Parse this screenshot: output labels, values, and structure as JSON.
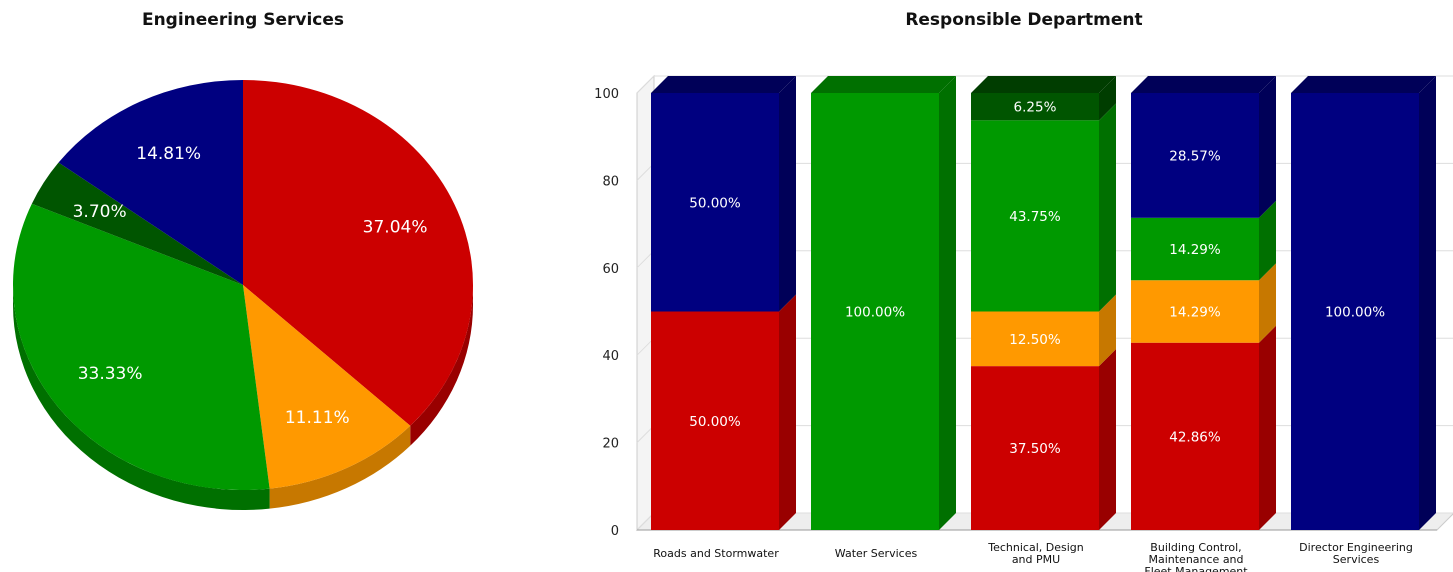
{
  "chart_data": [
    {
      "type": "pie",
      "title": "Engineering Services",
      "slices": [
        {
          "label": "37.04%",
          "value": 37.04,
          "color": "#cc0000",
          "side": "#990000"
        },
        {
          "label": "11.11%",
          "value": 11.11,
          "color": "#ff9900",
          "side": "#c77800"
        },
        {
          "label": "33.33%",
          "value": 33.33,
          "color": "#009900",
          "side": "#007000"
        },
        {
          "label": "3.70%",
          "value": 3.7,
          "color": "#005500",
          "side": "#003d00"
        },
        {
          "label": "14.81%",
          "value": 14.81,
          "color": "#000080",
          "side": "#000058"
        }
      ]
    },
    {
      "type": "bar",
      "stacked": true,
      "title": "Responsible Department",
      "ylim": [
        0,
        100
      ],
      "yticks": [
        "0",
        "20",
        "40",
        "60",
        "80",
        "100"
      ],
      "grid": true,
      "categories": [
        [
          "Roads and Stormwater"
        ],
        [
          "Water Services"
        ],
        [
          "Technical, Design",
          "and PMU"
        ],
        [
          "Building Control,",
          "Maintenance and",
          "Fleet Management"
        ],
        [
          "Director Engineering",
          "Services"
        ]
      ],
      "series": [
        {
          "color": "#cc0000",
          "side": "#990000",
          "values": [
            50.0,
            0,
            37.5,
            42.86,
            0
          ],
          "labels": [
            "50.00%",
            "",
            "37.50%",
            "42.86%",
            ""
          ]
        },
        {
          "color": "#ff9900",
          "side": "#c77800",
          "values": [
            0,
            0,
            12.5,
            14.29,
            0
          ],
          "labels": [
            "",
            "",
            "12.50%",
            "14.29%",
            ""
          ]
        },
        {
          "color": "#009900",
          "side": "#007000",
          "values": [
            0,
            100.0,
            43.75,
            14.29,
            0
          ],
          "labels": [
            "",
            "100.00%",
            "43.75%",
            "14.29%",
            ""
          ]
        },
        {
          "color": "#005500",
          "side": "#003d00",
          "values": [
            0,
            0,
            6.25,
            0,
            0
          ],
          "labels": [
            "",
            "",
            "6.25%",
            "",
            ""
          ]
        },
        {
          "color": "#000080",
          "side": "#000058",
          "values": [
            50.0,
            0,
            0,
            28.57,
            100.0
          ],
          "labels": [
            "50.00%",
            "",
            "",
            "28.57%",
            "100.00%"
          ]
        }
      ]
    }
  ]
}
